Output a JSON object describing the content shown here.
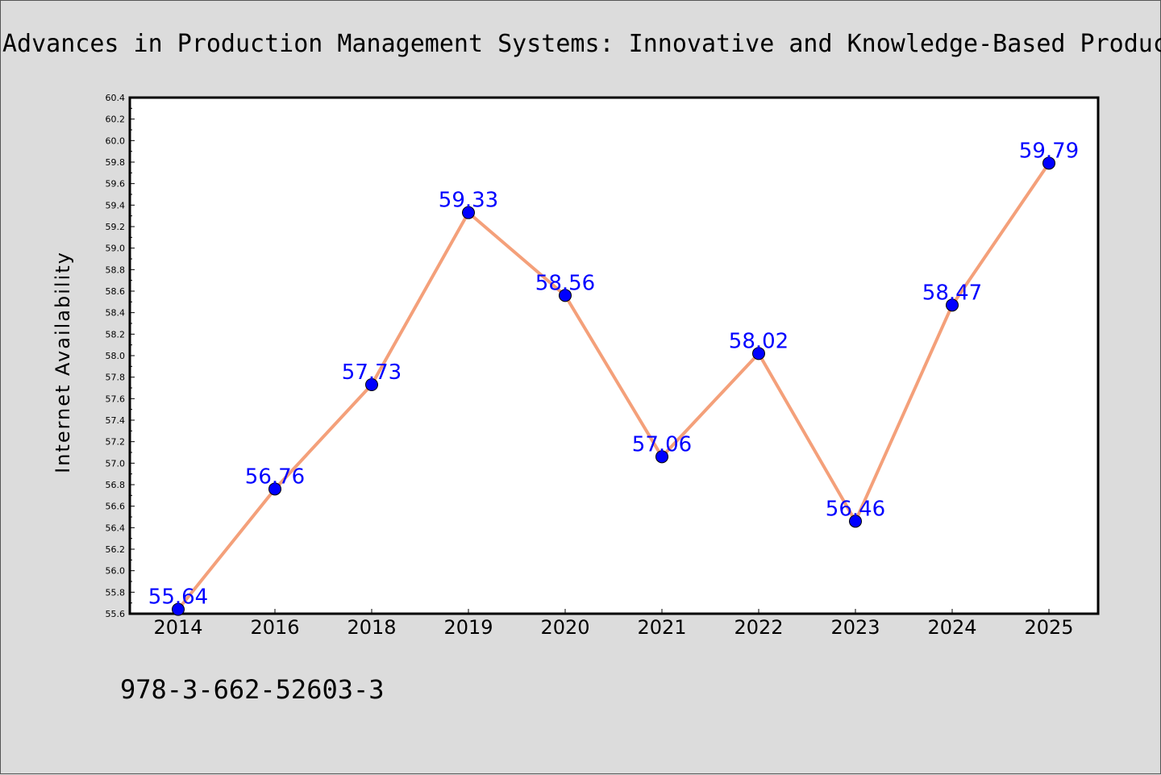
{
  "title": "Advances in Production Management Systems: Innovative and Knowledge-Based Production",
  "footer_isbn": "978-3-662-52603-3",
  "colors": {
    "background": "#dcdcdc",
    "plot_background": "#ffffff",
    "line": "#f4a07a",
    "marker": "#0000ff",
    "data_label": "#0000ff"
  },
  "chart_data": {
    "type": "line",
    "title": "Advances in Production Management Systems: Innovative and Knowledge-Based Production",
    "xlabel": "",
    "ylabel": "Internet Availability",
    "categories": [
      "2014",
      "2016",
      "2018",
      "2019",
      "2020",
      "2021",
      "2022",
      "2023",
      "2024",
      "2025"
    ],
    "series": [
      {
        "values": [
          55.64,
          56.76,
          57.73,
          59.33,
          58.56,
          57.06,
          58.02,
          56.46,
          58.47,
          59.79
        ],
        "labels": [
          "55.64",
          "56.76",
          "57.73",
          "59.33",
          "58.56",
          "57.06",
          "58.02",
          "56.46",
          "58.47",
          "59.79"
        ]
      }
    ],
    "ylim": [
      55.6,
      60.4
    ],
    "yticks": [
      "55.6",
      "55.8",
      "56.0",
      "56.2",
      "56.4",
      "56.6",
      "56.8",
      "57.0",
      "57.2",
      "57.4",
      "57.6",
      "57.8",
      "58.0",
      "58.2",
      "58.4",
      "58.6",
      "58.8",
      "59.0",
      "59.2",
      "59.4",
      "59.6",
      "59.8",
      "60.0",
      "60.2",
      "60.4"
    ],
    "grid": false,
    "legend": "none"
  }
}
